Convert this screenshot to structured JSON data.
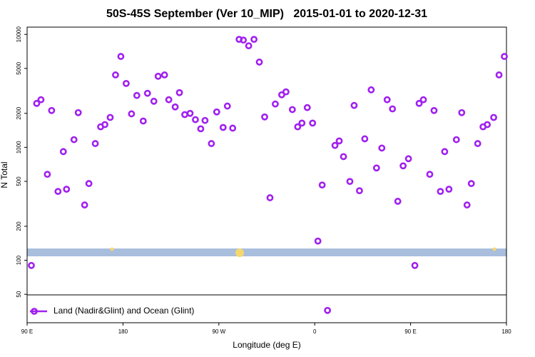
{
  "chart_data": {
    "type": "scatter",
    "title": "50S-45S September (Ver 10_MIP)   2015-01-01 to 2020-12-31",
    "x_label": "Longitude (deg E)",
    "y_label": "N Total",
    "xlim": [
      90,
      540
    ],
    "ylim": [
      28,
      11600
    ],
    "y_scale": "log",
    "legend": "bottom-left",
    "xticks": [
      {
        "value": 90,
        "label": "90 E"
      },
      180,
      {
        "value": 270,
        "label": "90 W"
      },
      {
        "value": 360,
        "label": "0"
      },
      {
        "value": 450,
        "label": "90 E"
      },
      {
        "value": 540,
        "label": "180"
      }
    ],
    "yticks": [
      50,
      100,
      200,
      500,
      1000,
      2000,
      5000,
      10000
    ],
    "series": [
      {
        "name": "Land (Nadir&Glint) and Ocean (Glint)",
        "color": "#a020f0",
        "x": [
          94,
          99,
          103,
          109,
          113,
          119,
          124,
          127,
          134,
          138,
          144,
          148,
          154,
          159,
          163,
          168,
          173,
          178,
          183,
          188,
          193,
          199,
          203,
          209,
          213,
          219,
          223,
          229,
          233,
          238,
          243,
          248,
          253,
          257,
          263,
          268,
          274,
          278,
          283,
          289,
          293,
          298,
          303,
          308,
          313,
          318,
          323,
          329,
          333,
          339,
          344,
          348,
          353,
          358,
          363,
          367,
          372,
          379,
          383,
          387,
          393,
          397,
          402,
          407,
          413,
          418,
          423,
          428,
          433,
          438,
          443,
          448,
          454,
          458,
          462,
          468,
          472,
          478,
          482,
          486,
          493,
          498,
          503,
          507,
          513,
          518,
          522,
          528,
          533,
          538
        ],
        "values": [
          90,
          2450,
          2640,
          577,
          2120,
          407,
          917,
          426,
          1170,
          2030,
          309,
          478,
          1080,
          1520,
          1590,
          1840,
          4380,
          6380,
          3680,
          1980,
          2880,
          1710,
          3010,
          2560,
          4260,
          4380,
          2640,
          2280,
          3050,
          1950,
          2000,
          1760,
          1460,
          1730,
          1080,
          2060,
          1500,
          2320,
          1480,
          9040,
          8910,
          7930,
          9040,
          5690,
          1860,
          358,
          2420,
          2920,
          3100,
          2160,
          1520,
          1640,
          2250,
          1640,
          148,
          464,
          36,
          1040,
          1140,
          828,
          499,
          2350,
          413,
          1190,
          3230,
          657,
          986,
          2640,
          2190,
          333,
          686,
          793,
          90,
          2450,
          2640,
          577,
          2120,
          407,
          917,
          426,
          1170,
          2030,
          309,
          478,
          1080,
          1520,
          1590,
          1840,
          4380,
          6380
        ]
      }
    ]
  }
}
